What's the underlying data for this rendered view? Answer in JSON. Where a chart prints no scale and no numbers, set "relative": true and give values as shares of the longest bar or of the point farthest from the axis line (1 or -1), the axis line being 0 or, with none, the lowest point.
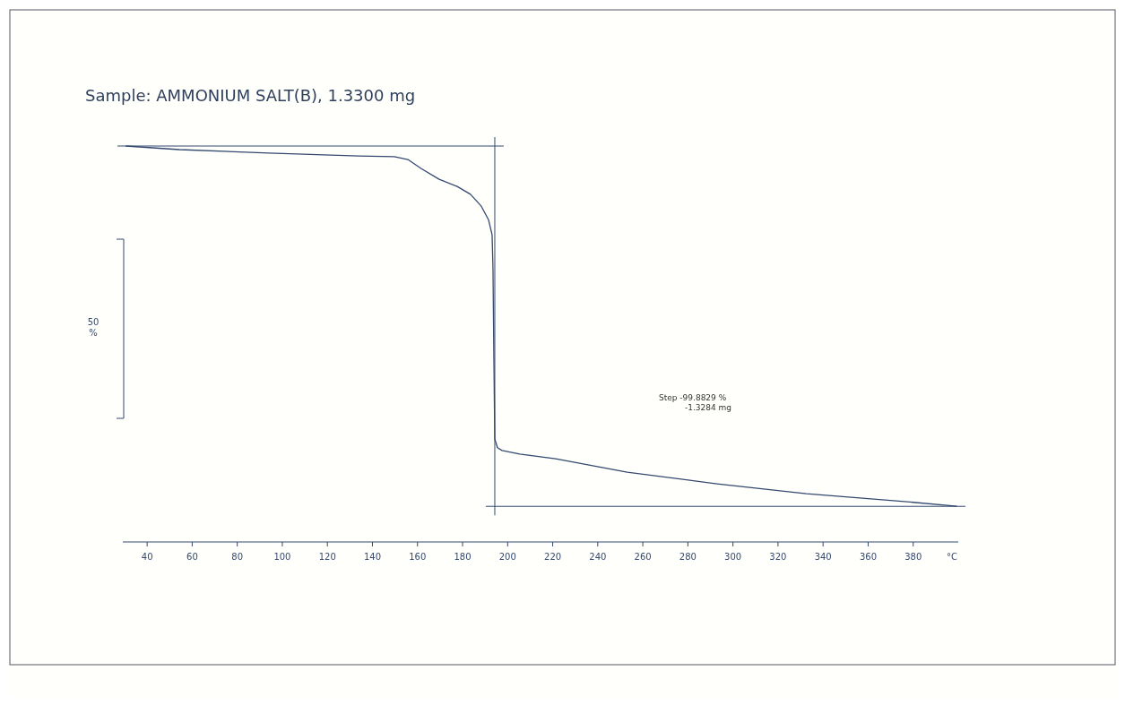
{
  "chart_data": {
    "type": "line",
    "title": "Sample: AMMONIUM SALT(B), 1.3300 mg",
    "xlabel": "°C",
    "ylabel": "50 %",
    "relative": true,
    "annotations": [
      "Step -99.8829 %",
      "-1.3284 mg"
    ],
    "xlim": [
      30,
      400
    ],
    "xticks": [
      40,
      60,
      80,
      100,
      120,
      140,
      160,
      180,
      200,
      220,
      240,
      260,
      280,
      300,
      320,
      340,
      360,
      380
    ],
    "ref_lines": [
      {
        "axis": "y",
        "value": 1,
        "label": null
      },
      {
        "axis": "y",
        "value": 0.09,
        "label": null
      },
      {
        "axis": "x",
        "value": 194.3,
        "label": null
      }
    ],
    "marker": "none",
    "line_style": "solid",
    "series": [
      {
        "color": "#34496f",
        "x": [
          30.5,
          54.3,
          94.1,
          133.8,
          149.7,
          155.7,
          161.7,
          169.6,
          177.6,
          183.5,
          188.3,
          191.5,
          193.1,
          193.5,
          193.9,
          194.3,
          195.5,
          197.5,
          205.4,
          221.3,
          253.1,
          292.9,
          332.6,
          372.4,
          399.4
        ],
        "values": [
          1.0,
          0.991,
          0.982,
          0.975,
          0.973,
          0.966,
          0.943,
          0.916,
          0.898,
          0.878,
          0.848,
          0.814,
          0.776,
          0.69,
          0.464,
          0.26,
          0.238,
          0.231,
          0.222,
          0.21,
          0.176,
          0.147,
          0.122,
          0.104,
          0.09
        ]
      }
    ]
  }
}
